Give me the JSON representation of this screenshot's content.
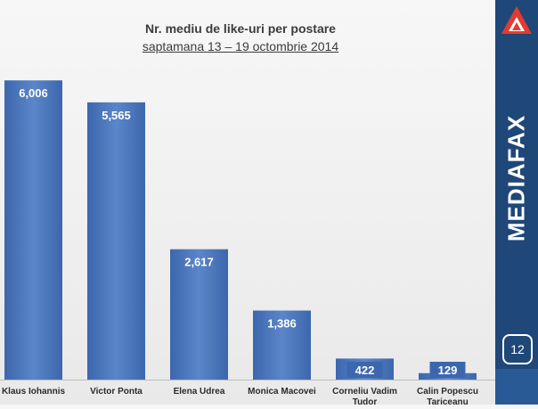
{
  "chart_data": {
    "type": "bar",
    "title": "Nr. mediu de like-uri per postare",
    "subtitle": "saptamana 13 – 19 octombrie 2014",
    "categories": [
      "Klaus Iohannis",
      "Victor Ponta",
      "Elena Udrea",
      "Monica Macovei",
      "Corneliu Vadim Tudor",
      "Calin Popescu Tariceanu"
    ],
    "values": [
      6006,
      5565,
      2617,
      1386,
      422,
      129
    ],
    "value_labels": [
      "6,006",
      "5,565",
      "2,617",
      "1,386",
      "422",
      "129"
    ],
    "ylim": [
      0,
      6600
    ],
    "grid": false,
    "legend": "none",
    "bar_color": "#4a74b8",
    "bar_color_light": "#6c95d4",
    "label_color": "#ffffff"
  },
  "sidebar": {
    "brand": "MEDIAFAX",
    "page_number": "12",
    "logo_icon": "mediafax-triangle-logo-icon",
    "color": "#1f4778"
  }
}
